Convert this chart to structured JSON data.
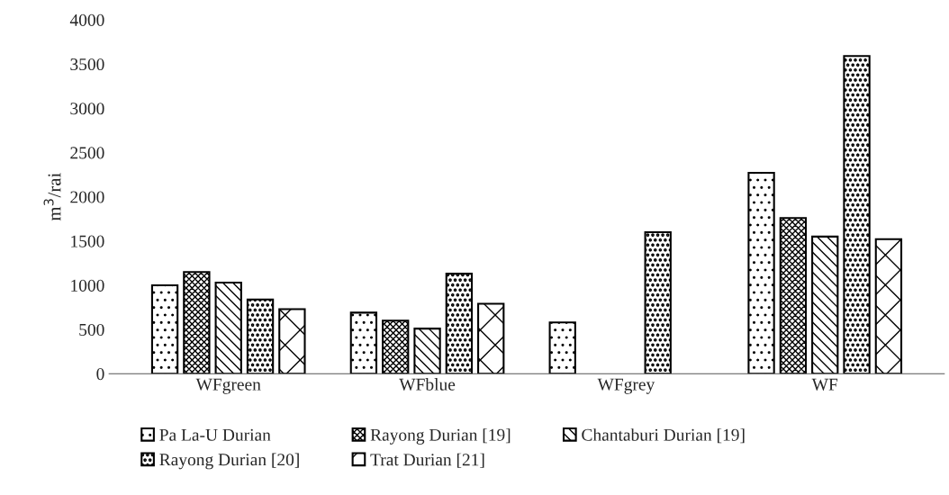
{
  "chart_data": {
    "type": "bar",
    "ylabel": "m$^{3}$/rai",
    "categories": [
      "WFgreen",
      "WFblue",
      "WFgrey",
      "WF"
    ],
    "series": [
      {
        "name": "Pa La-U Durian",
        "color": "#000000",
        "values": [
          1000,
          690,
          580,
          2270
        ]
      },
      {
        "name": "Rayong Durian [19]",
        "color": "#000000",
        "values": [
          1150,
          600,
          null,
          1760
        ]
      },
      {
        "name": "Chantaburi Durian [19]",
        "color": "#000000",
        "values": [
          1030,
          510,
          null,
          1550
        ]
      },
      {
        "name": "Rayong Durian [20]",
        "color": "#000000",
        "values": [
          840,
          1130,
          1600,
          3590
        ]
      },
      {
        "name": "Trat Durian [21]",
        "color": "#000000",
        "values": [
          730,
          790,
          null,
          1520
        ]
      }
    ],
    "ylim": [
      0,
      4000
    ],
    "yticks": [
      0,
      500,
      1000,
      1500,
      2000,
      2500,
      3000,
      3500,
      4000
    ],
    "grid": false,
    "legend": "bottom"
  }
}
